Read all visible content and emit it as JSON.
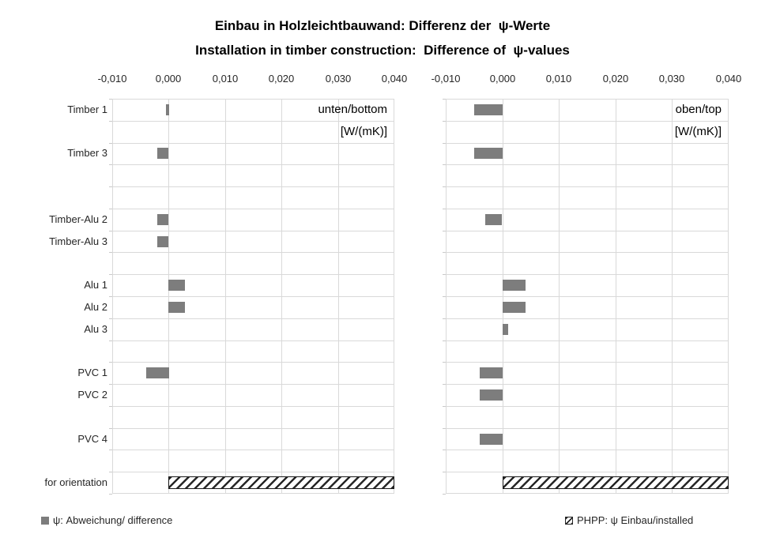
{
  "title": {
    "line1": "Einbau in Holzleichtbauwand: Differenz der  ψ-Werte",
    "line2": "Installation in timber construction:  Difference of  ψ-values"
  },
  "colors": {
    "bar_gray": "#7d7d7d",
    "gridline": "#d9d9d9",
    "hatch_stroke": "#262626",
    "text": "#262626"
  },
  "legend": [
    {
      "marker": "gray-square",
      "label": "ψ: Abweichung/ difference"
    },
    {
      "marker": "hatched-square",
      "label": "PHPP: ψ Einbau/installed"
    }
  ],
  "chart_data": [
    {
      "type": "bar",
      "orientation": "horizontal",
      "panel_label": "unten/bottom",
      "unit_label": "[W/(mK)]",
      "xlim": [
        -0.01,
        0.04
      ],
      "xticks": [
        -0.01,
        0.0,
        0.01,
        0.02,
        0.03,
        0.04
      ],
      "xtick_labels": [
        "-0,010",
        "0,000",
        "0,010",
        "0,020",
        "0,030",
        "0,040"
      ],
      "grid": true,
      "show_category_labels": true,
      "series_name": "ψ: Abweichung/ difference",
      "hatched_series_name": "PHPP: ψ Einbau/installed",
      "rows": [
        {
          "label": "Timber 1",
          "value": -0.0005,
          "style": "solid"
        },
        {
          "label": "",
          "value": null,
          "style": "none"
        },
        {
          "label": "Timber 3",
          "value": -0.002,
          "style": "solid"
        },
        {
          "label": "",
          "value": null,
          "style": "none"
        },
        {
          "label": "",
          "value": null,
          "style": "none"
        },
        {
          "label": "Timber-Alu 2",
          "value": -0.002,
          "style": "solid"
        },
        {
          "label": "Timber-Alu 3",
          "value": -0.002,
          "style": "solid"
        },
        {
          "label": "",
          "value": null,
          "style": "none"
        },
        {
          "label": "Alu 1",
          "value": 0.003,
          "style": "solid"
        },
        {
          "label": "Alu 2",
          "value": 0.003,
          "style": "solid"
        },
        {
          "label": "Alu 3",
          "value": null,
          "style": "none"
        },
        {
          "label": "",
          "value": null,
          "style": "none"
        },
        {
          "label": "PVC 1",
          "value": -0.004,
          "style": "solid"
        },
        {
          "label": "PVC 2",
          "value": null,
          "style": "none"
        },
        {
          "label": "",
          "value": null,
          "style": "none"
        },
        {
          "label": "PVC 4",
          "value": null,
          "style": "none"
        },
        {
          "label": "",
          "value": null,
          "style": "none"
        },
        {
          "label": "for orientation",
          "value": 0.04,
          "style": "hatched"
        }
      ]
    },
    {
      "type": "bar",
      "orientation": "horizontal",
      "panel_label": "oben/top",
      "unit_label": "[W/(mK)]",
      "xlim": [
        -0.01,
        0.04
      ],
      "xticks": [
        -0.01,
        0.0,
        0.01,
        0.02,
        0.03,
        0.04
      ],
      "xtick_labels": [
        "-0,010",
        "0,000",
        "0,010",
        "0,020",
        "0,030",
        "0,040"
      ],
      "grid": true,
      "show_category_labels": false,
      "series_name": "ψ: Abweichung/ difference",
      "hatched_series_name": "PHPP: ψ Einbau/installed",
      "rows": [
        {
          "label": "Timber 1",
          "value": -0.005,
          "style": "solid"
        },
        {
          "label": "",
          "value": null,
          "style": "none"
        },
        {
          "label": "Timber 3",
          "value": -0.005,
          "style": "solid"
        },
        {
          "label": "",
          "value": null,
          "style": "none"
        },
        {
          "label": "",
          "value": null,
          "style": "none"
        },
        {
          "label": "Timber-Alu 2",
          "value": -0.003,
          "style": "solid"
        },
        {
          "label": "Timber-Alu 3",
          "value": null,
          "style": "none"
        },
        {
          "label": "",
          "value": null,
          "style": "none"
        },
        {
          "label": "Alu 1",
          "value": 0.004,
          "style": "solid"
        },
        {
          "label": "Alu 2",
          "value": 0.004,
          "style": "solid"
        },
        {
          "label": "Alu 3",
          "value": 0.001,
          "style": "solid"
        },
        {
          "label": "",
          "value": null,
          "style": "none"
        },
        {
          "label": "PVC 1",
          "value": -0.004,
          "style": "solid"
        },
        {
          "label": "PVC 2",
          "value": -0.004,
          "style": "solid"
        },
        {
          "label": "",
          "value": null,
          "style": "none"
        },
        {
          "label": "PVC 4",
          "value": -0.004,
          "style": "solid"
        },
        {
          "label": "",
          "value": null,
          "style": "none"
        },
        {
          "label": "for orientation",
          "value": 0.04,
          "style": "hatched"
        }
      ]
    }
  ]
}
